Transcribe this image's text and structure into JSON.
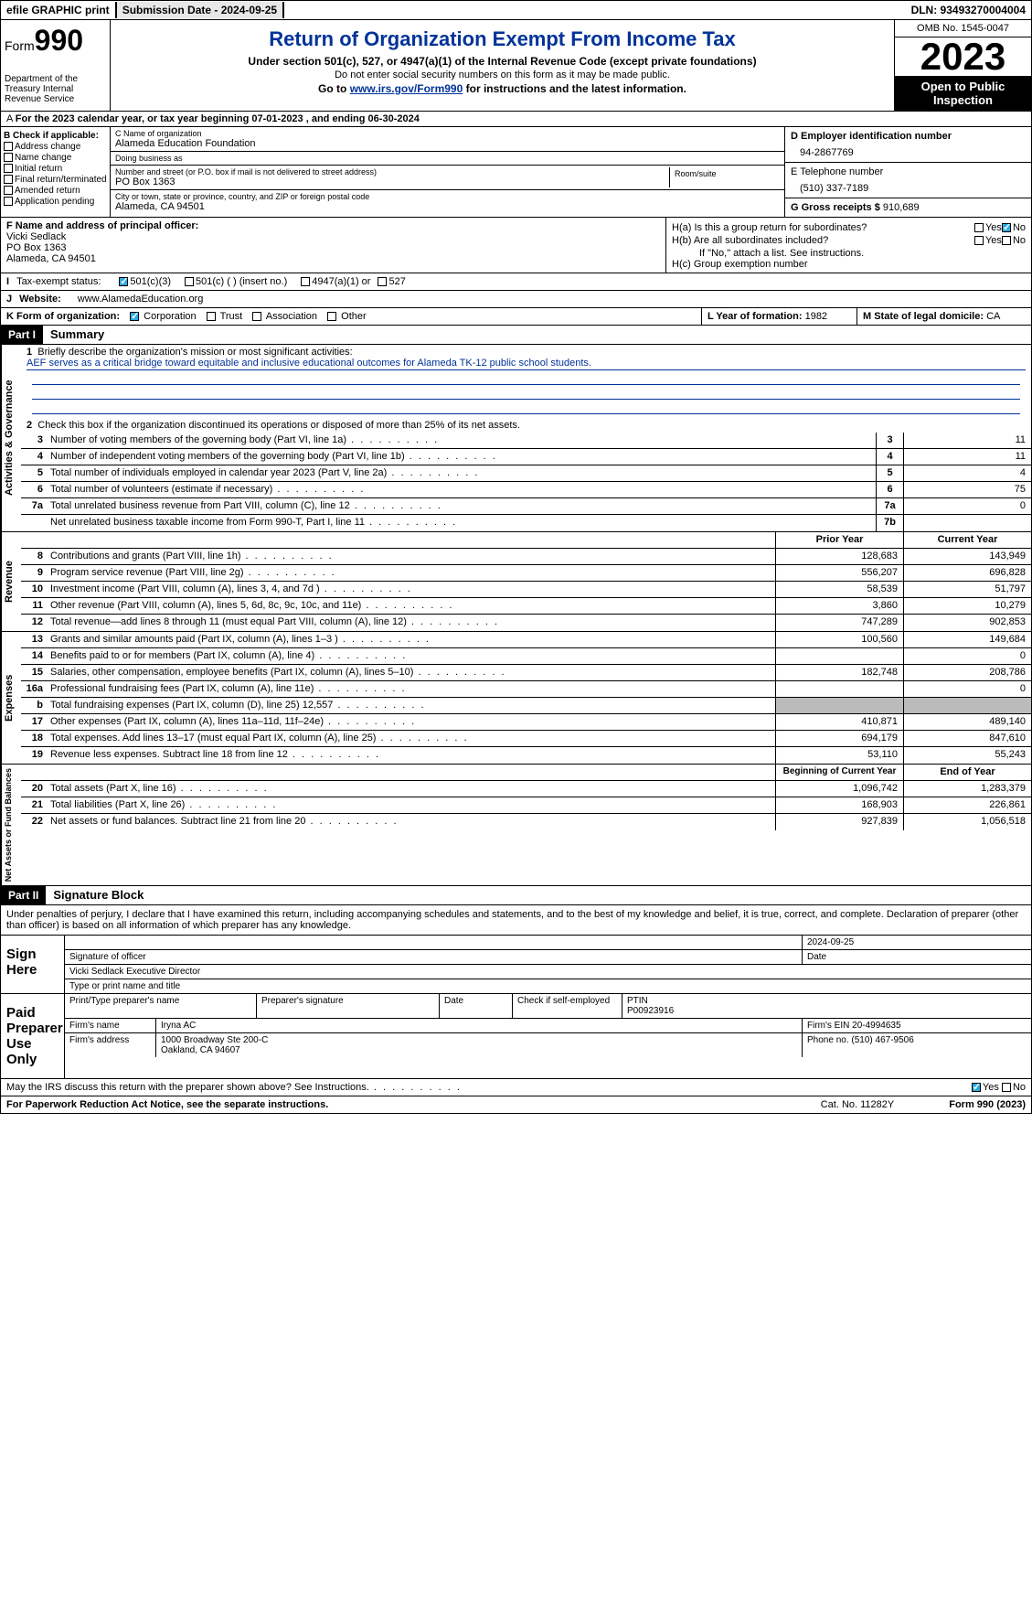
{
  "topbar": {
    "efile": "efile GRAPHIC print",
    "submission": "Submission Date - 2024-09-25",
    "dln": "DLN: 93493270004004"
  },
  "header": {
    "form_label": "Form",
    "form_num": "990",
    "dept": "Department of the Treasury Internal Revenue Service",
    "title": "Return of Organization Exempt From Income Tax",
    "sub1": "Under section 501(c), 527, or 4947(a)(1) of the Internal Revenue Code (except private foundations)",
    "sub2": "Do not enter social security numbers on this form as it may be made public.",
    "goto_pre": "Go to ",
    "goto_link": "www.irs.gov/Form990",
    "goto_post": " for instructions and the latest information.",
    "omb": "OMB No. 1545-0047",
    "year": "2023",
    "inspect": "Open to Public Inspection"
  },
  "lineA": "For the 2023 calendar year, or tax year beginning 07-01-2023    , and ending 06-30-2024",
  "boxB": {
    "title": "B Check if applicable:",
    "opts": [
      "Address change",
      "Name change",
      "Initial return",
      "Final return/terminated",
      "Amended return",
      "Application pending"
    ]
  },
  "boxC": {
    "name_lbl": "C Name of organization",
    "name": "Alameda Education Foundation",
    "dba_lbl": "Doing business as",
    "dba": "",
    "addr_lbl": "Number and street (or P.O. box if mail is not delivered to street address)",
    "addr": "PO Box 1363",
    "room_lbl": "Room/suite",
    "city_lbl": "City or town, state or province, country, and ZIP or foreign postal code",
    "city": "Alameda, CA  94501"
  },
  "boxD": {
    "lbl": "D Employer identification number",
    "val": "94-2867769"
  },
  "boxE": {
    "lbl": "E Telephone number",
    "val": "(510) 337-7189"
  },
  "boxG": {
    "lbl": "G Gross receipts $",
    "val": "910,689"
  },
  "boxF": {
    "lbl": "F  Name and address of principal officer:",
    "name": "Vicki Sedlack",
    "addr1": "PO Box 1363",
    "addr2": "Alameda, CA  94501"
  },
  "boxH": {
    "a": "H(a)  Is this a group return for subordinates?",
    "b": "H(b)  Are all subordinates included?",
    "note": "If \"No,\" attach a list. See instructions.",
    "c": "H(c)  Group exemption number"
  },
  "boxI": {
    "lbl": "Tax-exempt status:",
    "o1": "501(c)(3)",
    "o2": "501(c) (  ) (insert no.)",
    "o3": "4947(a)(1) or",
    "o4": "527"
  },
  "boxJ": {
    "lbl": "Website:",
    "val": "www.AlamedaEducation.org"
  },
  "boxK": {
    "lbl": "K Form of organization:",
    "o1": "Corporation",
    "o2": "Trust",
    "o3": "Association",
    "o4": "Other"
  },
  "boxL": {
    "lbl": "L Year of formation:",
    "val": "1982"
  },
  "boxM": {
    "lbl": "M State of legal domicile:",
    "val": "CA"
  },
  "part1": {
    "hdr": "Part I",
    "title": "Summary"
  },
  "mission": {
    "lbl": "Briefly describe the organization's mission or most significant activities:",
    "txt": "AEF serves as a critical bridge toward equitable and inclusive educational outcomes for Alameda TK-12 public school students."
  },
  "line2": "Check this box      if the organization discontinued its operations or disposed of more than 25% of its net assets.",
  "govLines": [
    {
      "n": "3",
      "t": "Number of voting members of the governing body (Part VI, line 1a)",
      "b": "3",
      "v": "11"
    },
    {
      "n": "4",
      "t": "Number of independent voting members of the governing body (Part VI, line 1b)",
      "b": "4",
      "v": "11"
    },
    {
      "n": "5",
      "t": "Total number of individuals employed in calendar year 2023 (Part V, line 2a)",
      "b": "5",
      "v": "4"
    },
    {
      "n": "6",
      "t": "Total number of volunteers (estimate if necessary)",
      "b": "6",
      "v": "75"
    },
    {
      "n": "7a",
      "t": "Total unrelated business revenue from Part VIII, column (C), line 12",
      "b": "7a",
      "v": "0"
    },
    {
      "n": "",
      "t": "Net unrelated business taxable income from Form 990-T, Part I, line 11",
      "b": "7b",
      "v": ""
    }
  ],
  "colHdrs": {
    "prior": "Prior Year",
    "current": "Current Year",
    "begin": "Beginning of Current Year",
    "end": "End of Year"
  },
  "revLines": [
    {
      "n": "8",
      "t": "Contributions and grants (Part VIII, line 1h)",
      "p": "128,683",
      "c": "143,949"
    },
    {
      "n": "9",
      "t": "Program service revenue (Part VIII, line 2g)",
      "p": "556,207",
      "c": "696,828"
    },
    {
      "n": "10",
      "t": "Investment income (Part VIII, column (A), lines 3, 4, and 7d )",
      "p": "58,539",
      "c": "51,797"
    },
    {
      "n": "11",
      "t": "Other revenue (Part VIII, column (A), lines 5, 6d, 8c, 9c, 10c, and 11e)",
      "p": "3,860",
      "c": "10,279"
    },
    {
      "n": "12",
      "t": "Total revenue—add lines 8 through 11 (must equal Part VIII, column (A), line 12)",
      "p": "747,289",
      "c": "902,853"
    }
  ],
  "expLines": [
    {
      "n": "13",
      "t": "Grants and similar amounts paid (Part IX, column (A), lines 1–3 )",
      "p": "100,560",
      "c": "149,684"
    },
    {
      "n": "14",
      "t": "Benefits paid to or for members (Part IX, column (A), line 4)",
      "p": "",
      "c": "0"
    },
    {
      "n": "15",
      "t": "Salaries, other compensation, employee benefits (Part IX, column (A), lines 5–10)",
      "p": "182,748",
      "c": "208,786"
    },
    {
      "n": "16a",
      "t": "Professional fundraising fees (Part IX, column (A), line 11e)",
      "p": "",
      "c": "0"
    },
    {
      "n": "b",
      "t": "Total fundraising expenses (Part IX, column (D), line 25) 12,557",
      "p": "grey",
      "c": "grey"
    },
    {
      "n": "17",
      "t": "Other expenses (Part IX, column (A), lines 11a–11d, 11f–24e)",
      "p": "410,871",
      "c": "489,140"
    },
    {
      "n": "18",
      "t": "Total expenses. Add lines 13–17 (must equal Part IX, column (A), line 25)",
      "p": "694,179",
      "c": "847,610"
    },
    {
      "n": "19",
      "t": "Revenue less expenses. Subtract line 18 from line 12",
      "p": "53,110",
      "c": "55,243"
    }
  ],
  "netLines": [
    {
      "n": "20",
      "t": "Total assets (Part X, line 16)",
      "p": "1,096,742",
      "c": "1,283,379"
    },
    {
      "n": "21",
      "t": "Total liabilities (Part X, line 26)",
      "p": "168,903",
      "c": "226,861"
    },
    {
      "n": "22",
      "t": "Net assets or fund balances. Subtract line 21 from line 20",
      "p": "927,839",
      "c": "1,056,518"
    }
  ],
  "vtabs": {
    "gov": "Activities & Governance",
    "rev": "Revenue",
    "exp": "Expenses",
    "net": "Net Assets or Fund Balances"
  },
  "part2": {
    "hdr": "Part II",
    "title": "Signature Block"
  },
  "sigIntro": "Under penalties of perjury, I declare that I have examined this return, including accompanying schedules and statements, and to the best of my knowledge and belief, it is true, correct, and complete. Declaration of preparer (other than officer) is based on all information of which preparer has any knowledge.",
  "signHere": {
    "lbl": "Sign Here",
    "date": "2024-09-25",
    "sig_lbl": "Signature of officer",
    "date_lbl": "Date",
    "name": "Vicki Sedlack Executive Director",
    "name_lbl": "Type or print name and title"
  },
  "paid": {
    "lbl": "Paid Preparer Use Only",
    "h1": "Print/Type preparer's name",
    "h2": "Preparer's signature",
    "h3": "Date",
    "h4": "Check      if self-employed",
    "h5": "PTIN",
    "ptin": "P00923916",
    "firm_lbl": "Firm's name",
    "firm": "Iryna AC",
    "ein_lbl": "Firm's EIN",
    "ein": "20-4994635",
    "addr_lbl": "Firm's address",
    "addr1": "1000 Broadway Ste 200-C",
    "addr2": "Oakland, CA  94607",
    "phone_lbl": "Phone no.",
    "phone": "(510) 467-9506"
  },
  "discuss": "May the IRS discuss this return with the preparer shown above? See Instructions.",
  "footer": {
    "l": "For Paperwork Reduction Act Notice, see the separate instructions.",
    "m": "Cat. No. 11282Y",
    "r": "Form 990 (2023)"
  }
}
